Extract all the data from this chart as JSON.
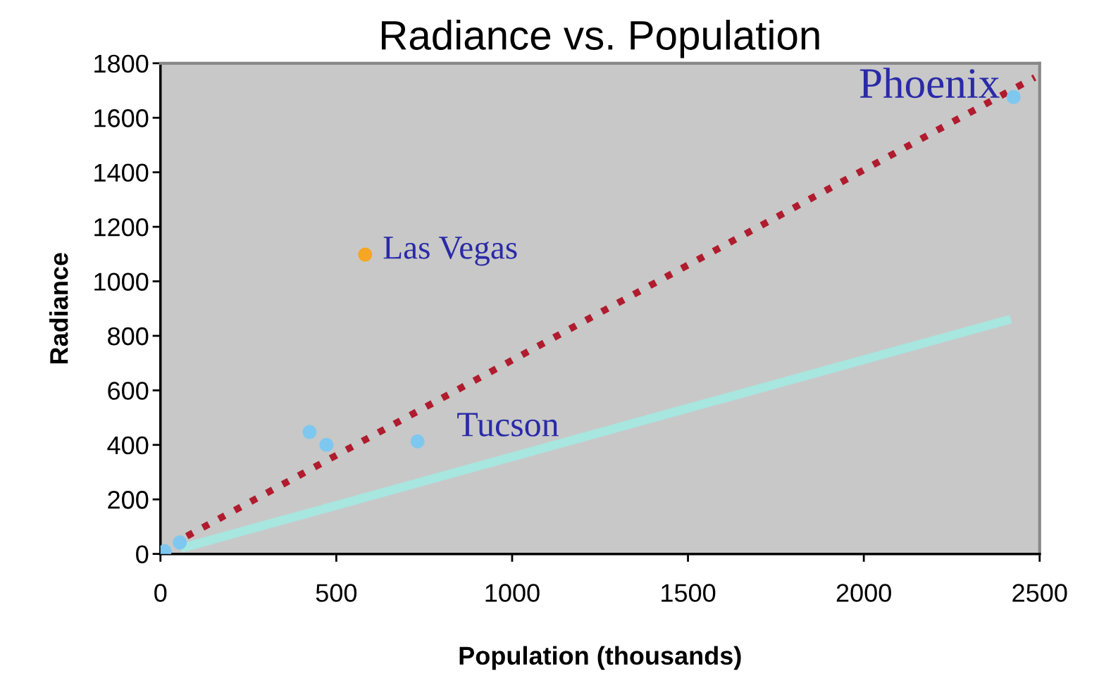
{
  "chart_data": {
    "type": "scatter",
    "title": "Radiance vs. Population",
    "xlabel": "Population (thousands)",
    "ylabel": "Radiance",
    "xlim": [
      0,
      2500
    ],
    "ylim": [
      0,
      1800
    ],
    "xticks": [
      0,
      500,
      1000,
      1500,
      2000,
      2500
    ],
    "yticks": [
      0,
      200,
      400,
      600,
      800,
      1000,
      1200,
      1400,
      1600,
      1800
    ],
    "grid": false,
    "legend": false,
    "marker": "circle",
    "series": [
      {
        "color": "#7ec8f0",
        "x": [
          12,
          55,
          424,
          472,
          731,
          2426
        ],
        "values": [
          10,
          42,
          447,
          400,
          413,
          1676
        ]
      },
      {
        "color": "#f5a623",
        "x": [
          582
        ],
        "values": [
          1098
        ]
      },
      {
        "type": "line",
        "marker": "none",
        "color": "#b01c2e",
        "line_style": "dotted",
        "x": [
          75,
          2486
        ],
        "values": [
          65,
          1748
        ]
      },
      {
        "type": "line",
        "marker": "none",
        "color": "#a8e6e0",
        "line_style": "solid",
        "x": [
          70,
          2406
        ],
        "values": [
          25,
          857
        ]
      }
    ],
    "annotations": [
      {
        "text": "Phoenix",
        "x": 2426,
        "y": 1676
      },
      {
        "text": "Las Vegas",
        "x": 582,
        "y": 1098
      },
      {
        "text": "Tucson",
        "x": 731,
        "y": 413
      }
    ]
  }
}
